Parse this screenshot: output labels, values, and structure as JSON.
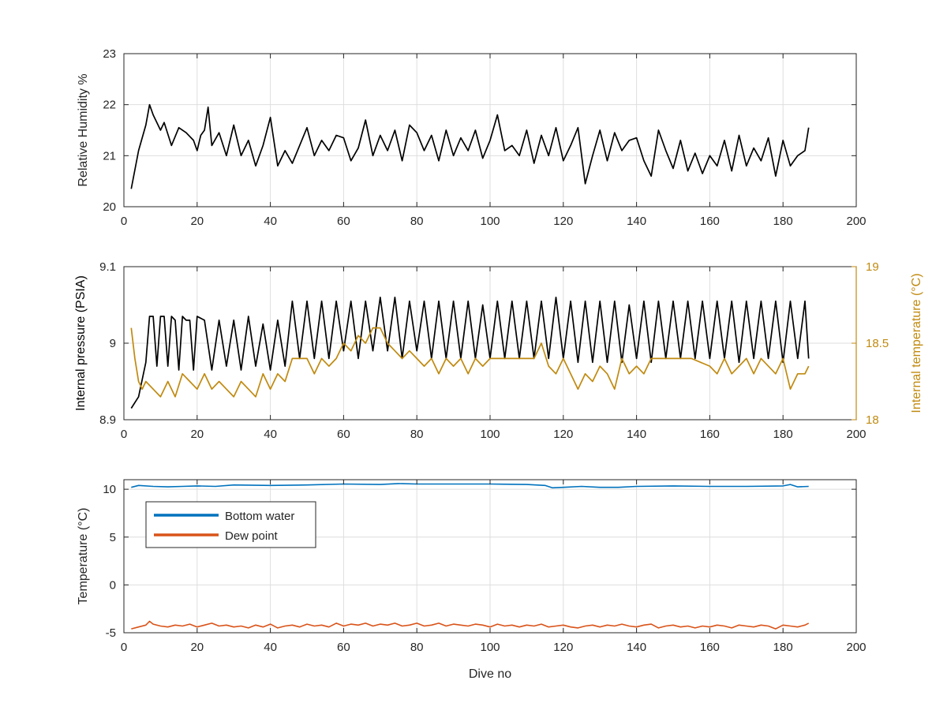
{
  "chart_data": [
    {
      "type": "line",
      "xlabel": "",
      "ylabel": "Relative Humidity %",
      "xlim": [
        0,
        200
      ],
      "ylim": [
        20,
        23
      ],
      "xticks": [
        0,
        20,
        40,
        60,
        80,
        100,
        120,
        140,
        160,
        180,
        200
      ],
      "yticks": [
        20,
        21,
        22,
        23
      ],
      "grid": true,
      "series": [
        {
          "color": "#000000",
          "x": [
            2,
            4,
            6,
            7,
            8,
            10,
            11,
            13,
            15,
            17,
            19,
            20,
            21,
            22,
            23,
            24,
            26,
            28,
            30,
            32,
            34,
            36,
            38,
            40,
            42,
            44,
            46,
            48,
            50,
            52,
            54,
            56,
            58,
            60,
            62,
            64,
            66,
            68,
            70,
            72,
            74,
            76,
            78,
            80,
            82,
            84,
            86,
            88,
            90,
            92,
            94,
            96,
            98,
            100,
            102,
            104,
            106,
            108,
            110,
            112,
            114,
            116,
            118,
            120,
            122,
            124,
            126,
            128,
            130,
            132,
            134,
            136,
            138,
            140,
            142,
            144,
            146,
            148,
            150,
            152,
            154,
            156,
            158,
            160,
            162,
            164,
            166,
            168,
            170,
            172,
            174,
            176,
            178,
            180,
            182,
            184,
            186,
            187
          ],
          "y": [
            20.35,
            21.1,
            21.6,
            22.0,
            21.8,
            21.5,
            21.65,
            21.2,
            21.55,
            21.45,
            21.3,
            21.1,
            21.4,
            21.5,
            21.95,
            21.2,
            21.45,
            21.0,
            21.6,
            21.0,
            21.3,
            20.8,
            21.2,
            21.75,
            20.8,
            21.1,
            20.85,
            21.2,
            21.55,
            21.0,
            21.3,
            21.1,
            21.4,
            21.35,
            20.9,
            21.15,
            21.7,
            21.0,
            21.4,
            21.1,
            21.5,
            20.9,
            21.6,
            21.45,
            21.1,
            21.4,
            20.9,
            21.5,
            21.0,
            21.35,
            21.1,
            21.5,
            20.95,
            21.3,
            21.8,
            21.1,
            21.2,
            21.0,
            21.5,
            20.85,
            21.4,
            21.0,
            21.55,
            20.9,
            21.2,
            21.55,
            20.45,
            21.0,
            21.5,
            20.9,
            21.45,
            21.1,
            21.3,
            21.35,
            20.9,
            20.6,
            21.5,
            21.1,
            20.75,
            21.3,
            20.7,
            21.05,
            20.65,
            21.0,
            20.8,
            21.3,
            20.7,
            21.4,
            20.8,
            21.15,
            20.9,
            21.35,
            20.6,
            21.3,
            20.8,
            21.0,
            21.1,
            21.55
          ]
        }
      ]
    },
    {
      "type": "line",
      "xlabel": "",
      "ylabel": "Internal pressure (PSIA)",
      "ylabel_right": "Internal temperature (°C)",
      "xlim": [
        0,
        200
      ],
      "ylim": [
        8.9,
        9.1
      ],
      "ylim_right": [
        18,
        19
      ],
      "xticks": [
        0,
        20,
        40,
        60,
        80,
        100,
        120,
        140,
        160,
        180,
        200
      ],
      "yticks": [
        8.9,
        9,
        9.1
      ],
      "yticks_right": [
        18,
        18.5,
        19
      ],
      "grid": true,
      "series": [
        {
          "axis": "left",
          "color": "#000000",
          "x": [
            2,
            4,
            6,
            7,
            8,
            9,
            10,
            11,
            12,
            13,
            14,
            15,
            16,
            17,
            18,
            19,
            20,
            22,
            24,
            26,
            28,
            30,
            32,
            34,
            36,
            38,
            40,
            42,
            44,
            46,
            48,
            50,
            52,
            54,
            56,
            58,
            60,
            62,
            64,
            66,
            68,
            70,
            72,
            74,
            76,
            78,
            80,
            82,
            84,
            86,
            88,
            90,
            92,
            94,
            96,
            98,
            100,
            102,
            104,
            106,
            108,
            110,
            112,
            114,
            116,
            118,
            120,
            122,
            124,
            126,
            128,
            130,
            132,
            134,
            136,
            138,
            140,
            142,
            144,
            146,
            148,
            150,
            152,
            154,
            156,
            158,
            160,
            162,
            164,
            166,
            168,
            170,
            172,
            174,
            176,
            178,
            180,
            182,
            184,
            186,
            187
          ],
          "y": [
            8.915,
            8.93,
            8.975,
            9.035,
            9.035,
            8.97,
            9.035,
            9.035,
            8.97,
            9.035,
            9.03,
            8.965,
            9.035,
            9.03,
            9.03,
            8.965,
            9.035,
            9.03,
            8.965,
            9.03,
            8.97,
            9.03,
            8.965,
            9.035,
            8.97,
            9.025,
            8.965,
            9.03,
            8.97,
            9.055,
            8.98,
            9.055,
            8.98,
            9.055,
            8.98,
            9.055,
            8.99,
            9.055,
            8.98,
            9.055,
            8.99,
            9.06,
            8.99,
            9.06,
            8.98,
            9.055,
            8.99,
            9.055,
            8.98,
            9.055,
            8.98,
            9.055,
            8.98,
            9.055,
            8.98,
            9.05,
            8.98,
            9.055,
            8.98,
            9.055,
            8.98,
            9.055,
            8.98,
            9.055,
            8.98,
            9.06,
            8.98,
            9.055,
            8.975,
            9.055,
            8.975,
            9.055,
            8.975,
            9.055,
            8.975,
            9.05,
            8.98,
            9.055,
            8.975,
            9.055,
            8.98,
            9.055,
            8.98,
            9.055,
            8.98,
            9.055,
            8.98,
            9.055,
            8.98,
            9.055,
            8.975,
            9.055,
            8.98,
            9.055,
            8.98,
            9.055,
            8.975,
            9.055,
            8.98,
            9.055,
            8.98
          ]
        },
        {
          "axis": "right",
          "color": "#C08A10",
          "x": [
            2,
            3,
            4,
            5,
            6,
            8,
            10,
            12,
            14,
            16,
            18,
            20,
            22,
            24,
            26,
            28,
            30,
            32,
            34,
            36,
            38,
            40,
            42,
            44,
            46,
            50,
            52,
            54,
            56,
            58,
            60,
            62,
            64,
            66,
            68,
            70,
            72,
            74,
            76,
            78,
            80,
            82,
            84,
            86,
            88,
            90,
            92,
            94,
            96,
            98,
            100,
            104,
            108,
            112,
            114,
            116,
            118,
            120,
            122,
            124,
            126,
            128,
            130,
            132,
            134,
            136,
            138,
            140,
            142,
            144,
            146,
            150,
            155,
            160,
            162,
            164,
            166,
            168,
            170,
            172,
            174,
            176,
            178,
            180,
            182,
            184,
            186,
            187
          ],
          "y": [
            18.6,
            18.4,
            18.25,
            18.2,
            18.25,
            18.2,
            18.15,
            18.25,
            18.15,
            18.3,
            18.25,
            18.2,
            18.3,
            18.2,
            18.25,
            18.2,
            18.15,
            18.25,
            18.2,
            18.15,
            18.3,
            18.2,
            18.3,
            18.25,
            18.4,
            18.4,
            18.3,
            18.4,
            18.35,
            18.4,
            18.5,
            18.45,
            18.55,
            18.5,
            18.6,
            18.6,
            18.5,
            18.45,
            18.4,
            18.45,
            18.4,
            18.35,
            18.4,
            18.3,
            18.4,
            18.35,
            18.4,
            18.3,
            18.4,
            18.35,
            18.4,
            18.4,
            18.4,
            18.4,
            18.5,
            18.35,
            18.3,
            18.4,
            18.3,
            18.2,
            18.3,
            18.25,
            18.35,
            18.3,
            18.2,
            18.4,
            18.3,
            18.35,
            18.3,
            18.4,
            18.4,
            18.4,
            18.4,
            18.35,
            18.3,
            18.4,
            18.3,
            18.35,
            18.4,
            18.3,
            18.4,
            18.35,
            18.3,
            18.4,
            18.2,
            18.3,
            18.3,
            18.35
          ]
        }
      ]
    },
    {
      "type": "line",
      "xlabel": "Dive no",
      "ylabel": "Temperature (°C)",
      "xlim": [
        0,
        200
      ],
      "ylim": [
        -5,
        11
      ],
      "xticks": [
        0,
        20,
        40,
        60,
        80,
        100,
        120,
        140,
        160,
        180,
        200
      ],
      "yticks": [
        -5,
        0,
        5,
        10
      ],
      "grid": true,
      "legend": "top-left",
      "series": [
        {
          "name": "Bottom water",
          "color": "#0072BD",
          "x": [
            2,
            4,
            8,
            12,
            16,
            20,
            25,
            30,
            40,
            50,
            60,
            70,
            75,
            80,
            90,
            100,
            110,
            115,
            117,
            120,
            125,
            130,
            135,
            140,
            150,
            160,
            170,
            180,
            182,
            184,
            187
          ],
          "y": [
            10.2,
            10.4,
            10.3,
            10.25,
            10.3,
            10.35,
            10.3,
            10.45,
            10.4,
            10.45,
            10.55,
            10.5,
            10.6,
            10.55,
            10.55,
            10.55,
            10.5,
            10.4,
            10.15,
            10.2,
            10.3,
            10.2,
            10.2,
            10.3,
            10.35,
            10.3,
            10.3,
            10.35,
            10.5,
            10.25,
            10.3
          ]
        },
        {
          "name": "Dew point",
          "color": "#D95319",
          "x": [
            2,
            4,
            6,
            7,
            8,
            10,
            12,
            14,
            16,
            18,
            20,
            22,
            24,
            26,
            28,
            30,
            32,
            34,
            36,
            38,
            40,
            42,
            44,
            46,
            48,
            50,
            52,
            54,
            56,
            58,
            60,
            62,
            64,
            66,
            68,
            70,
            72,
            74,
            76,
            78,
            80,
            82,
            84,
            86,
            88,
            90,
            92,
            94,
            96,
            98,
            100,
            102,
            104,
            106,
            108,
            110,
            112,
            114,
            116,
            118,
            120,
            122,
            124,
            126,
            128,
            130,
            132,
            134,
            136,
            138,
            140,
            142,
            144,
            146,
            148,
            150,
            152,
            154,
            156,
            158,
            160,
            162,
            164,
            166,
            168,
            170,
            172,
            174,
            176,
            178,
            180,
            182,
            184,
            186,
            187
          ],
          "y": [
            -4.6,
            -4.4,
            -4.2,
            -3.8,
            -4.1,
            -4.3,
            -4.4,
            -4.2,
            -4.3,
            -4.1,
            -4.4,
            -4.2,
            -4.0,
            -4.3,
            -4.2,
            -4.4,
            -4.3,
            -4.5,
            -4.2,
            -4.4,
            -4.1,
            -4.5,
            -4.3,
            -4.2,
            -4.4,
            -4.1,
            -4.3,
            -4.2,
            -4.4,
            -4.0,
            -4.3,
            -4.1,
            -4.2,
            -4.0,
            -4.3,
            -4.1,
            -4.2,
            -4.0,
            -4.3,
            -4.2,
            -4.0,
            -4.3,
            -4.2,
            -4.0,
            -4.3,
            -4.1,
            -4.2,
            -4.3,
            -4.1,
            -4.2,
            -4.4,
            -4.1,
            -4.3,
            -4.2,
            -4.4,
            -4.2,
            -4.3,
            -4.1,
            -4.4,
            -4.3,
            -4.2,
            -4.4,
            -4.5,
            -4.3,
            -4.2,
            -4.4,
            -4.2,
            -4.3,
            -4.1,
            -4.3,
            -4.4,
            -4.2,
            -4.1,
            -4.5,
            -4.3,
            -4.2,
            -4.4,
            -4.3,
            -4.5,
            -4.3,
            -4.4,
            -4.2,
            -4.3,
            -4.5,
            -4.2,
            -4.3,
            -4.4,
            -4.2,
            -4.3,
            -4.6,
            -4.2,
            -4.3,
            -4.4,
            -4.2,
            -4.0
          ]
        }
      ]
    }
  ]
}
